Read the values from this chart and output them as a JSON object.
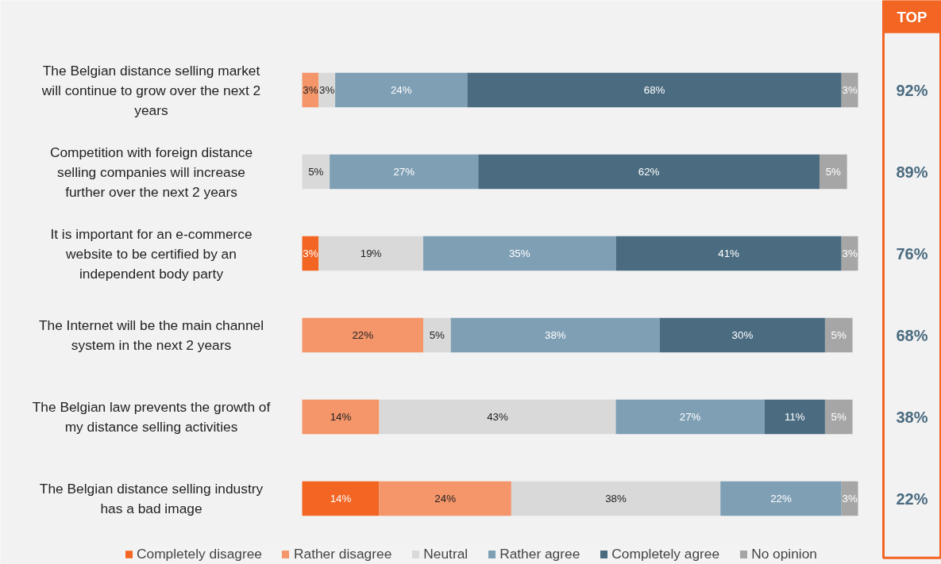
{
  "chart_data": {
    "type": "bar",
    "orientation": "horizontal",
    "stacked": true,
    "tick_labels": "y",
    "grid": false,
    "legend": "bottom",
    "categories": [
      "The Belgian distance selling market will continue to grow over the next 2 years",
      "Competition with foreign distance selling companies will increase further over the next 2 years",
      "It is important for an e-commerce website to be certified by an independent body party",
      "The Internet will be the main channel system in the next 2 years",
      "The Belgian law prevents the growth of my distance selling activities",
      "The Belgian distance selling industry has a bad image"
    ],
    "series": [
      {
        "name": "Completely disagree",
        "color": "#f26522",
        "values": [
          null,
          null,
          3,
          null,
          null,
          14
        ],
        "value_labels": [
          null,
          null,
          "3%",
          null,
          null,
          "14%"
        ]
      },
      {
        "name": "Rather disagree",
        "color": "#f4956a",
        "values": [
          3,
          null,
          null,
          22,
          14,
          24
        ],
        "value_labels": [
          "3%",
          null,
          null,
          "22%",
          "14%",
          "24%"
        ]
      },
      {
        "name": "Neutral",
        "color": "#d9d9d9",
        "values": [
          3,
          5,
          19,
          5,
          43,
          38
        ],
        "value_labels": [
          "3%",
          "5%",
          "19%",
          "5%",
          "43%",
          "38%"
        ]
      },
      {
        "name": "Rather agree",
        "color": "#7f9fb5",
        "values": [
          24,
          27,
          35,
          38,
          27,
          22
        ],
        "value_labels": [
          "24%",
          "27%",
          "35%",
          "38%",
          "27%",
          "22%"
        ]
      },
      {
        "name": "Completely agree",
        "color": "#4a6b80",
        "values": [
          68,
          62,
          41,
          30,
          11,
          null
        ],
        "value_labels": [
          "68%",
          "62%",
          "41%",
          "30%",
          "11%",
          null
        ]
      },
      {
        "name": "No opinion",
        "color": "#a6a6a6",
        "values": [
          3,
          5,
          3,
          5,
          5,
          3
        ],
        "value_labels": [
          "3%",
          "5%",
          "3%",
          "5%",
          "5%",
          "3%"
        ]
      }
    ],
    "annotations": [
      "TOP",
      "92%",
      "89%",
      "76%",
      "68%",
      "38%",
      "22%"
    ]
  }
}
